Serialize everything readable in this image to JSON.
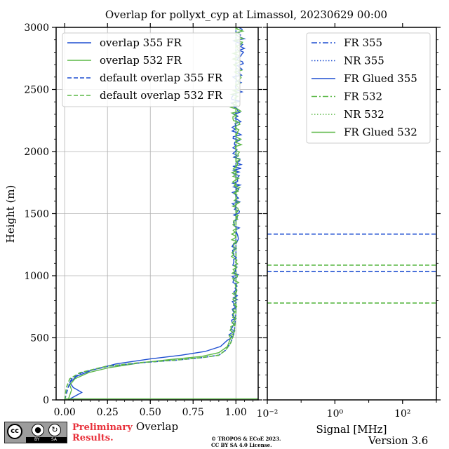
{
  "title": "Overlap for pollyxt_cyp at Limassol, 20230629 00:00",
  "chart_data": [
    {
      "type": "line",
      "xlabel": "Overlap",
      "ylabel": "Height (m)",
      "xlim": [
        -0.05,
        1.13
      ],
      "ylim": [
        0,
        3000
      ],
      "x_ticks": [
        "0.00",
        "0.25",
        "0.50",
        "0.75",
        "1.00"
      ],
      "x_tick_values": [
        0,
        0.25,
        0.5,
        0.75,
        1.0
      ],
      "y_ticks": [
        "0",
        "500",
        "1000",
        "1500",
        "2000",
        "2500",
        "3000"
      ],
      "y_tick_values": [
        0,
        500,
        1000,
        1500,
        2000,
        2500,
        3000
      ],
      "grid": true,
      "legend": "top",
      "series": [
        {
          "name": "overlap 355 FR",
          "color": "#1f4fd1",
          "style": "solid",
          "points": [
            [
              0.02,
              0
            ],
            [
              0.1,
              60
            ],
            [
              0.05,
              100
            ],
            [
              0.03,
              140
            ],
            [
              0.07,
              190
            ],
            [
              0.16,
              240
            ],
            [
              0.3,
              290
            ],
            [
              0.5,
              330
            ],
            [
              0.68,
              360
            ],
            [
              0.82,
              390
            ],
            [
              0.91,
              430
            ],
            [
              0.95,
              480
            ],
            [
              0.98,
              540
            ],
            [
              0.99,
              700
            ],
            [
              1.0,
              900
            ],
            [
              0.99,
              1100
            ],
            [
              1.0,
              1400
            ],
            [
              1.0,
              1700
            ],
            [
              1.01,
              2000
            ],
            [
              1.0,
              2300
            ],
            [
              1.01,
              2600
            ],
            [
              1.02,
              2800
            ],
            [
              1.02,
              3000
            ]
          ]
        },
        {
          "name": "overlap 532 FR",
          "color": "#5cb847",
          "style": "solid",
          "points": [
            [
              0.02,
              0
            ],
            [
              0.04,
              80
            ],
            [
              0.03,
              120
            ],
            [
              0.06,
              170
            ],
            [
              0.14,
              220
            ],
            [
              0.26,
              260
            ],
            [
              0.45,
              300
            ],
            [
              0.65,
              330
            ],
            [
              0.8,
              350
            ],
            [
              0.9,
              380
            ],
            [
              0.95,
              430
            ],
            [
              0.97,
              500
            ],
            [
              0.99,
              650
            ],
            [
              1.0,
              900
            ],
            [
              0.99,
              1200
            ],
            [
              1.0,
              1500
            ],
            [
              1.0,
              1800
            ],
            [
              1.01,
              2100
            ],
            [
              1.0,
              2400
            ],
            [
              1.01,
              2700
            ],
            [
              1.02,
              3000
            ]
          ]
        },
        {
          "name": "default overlap 355 FR",
          "color": "#1f4fd1",
          "style": "dashed",
          "points": [
            [
              0.0,
              0
            ],
            [
              0.02,
              100
            ],
            [
              0.04,
              170
            ],
            [
              0.1,
              220
            ],
            [
              0.25,
              270
            ],
            [
              0.45,
              300
            ],
            [
              0.65,
              320
            ],
            [
              0.8,
              340
            ],
            [
              0.9,
              360
            ],
            [
              0.94,
              400
            ],
            [
              0.97,
              460
            ],
            [
              0.99,
              540
            ],
            [
              1.0,
              700
            ],
            [
              1.0,
              3000
            ]
          ]
        },
        {
          "name": "default overlap 532 FR",
          "color": "#5cb847",
          "style": "dashed",
          "points": [
            [
              0.0,
              0
            ],
            [
              0.01,
              100
            ],
            [
              0.03,
              170
            ],
            [
              0.09,
              220
            ],
            [
              0.24,
              270
            ],
            [
              0.44,
              300
            ],
            [
              0.64,
              320
            ],
            [
              0.8,
              340
            ],
            [
              0.9,
              360
            ],
            [
              0.94,
              400
            ],
            [
              0.97,
              460
            ],
            [
              0.99,
              540
            ],
            [
              1.0,
              700
            ],
            [
              1.0,
              3000
            ]
          ]
        }
      ]
    },
    {
      "type": "line",
      "xlabel": "Signal [MHz]",
      "xscale": "log",
      "xlim": [
        0.01,
        1000
      ],
      "ylim": [
        0,
        3000
      ],
      "x_ticks": [
        "10⁻²",
        "10⁰",
        "10²"
      ],
      "x_tick_values": [
        0.01,
        1,
        100
      ],
      "grid": false,
      "legend": "top-right",
      "series": [
        {
          "name": "FR 355",
          "color": "#1f4fd1",
          "style": "dashdot"
        },
        {
          "name": "NR 355",
          "color": "#1f4fd1",
          "style": "dotted"
        },
        {
          "name": "FR Glued 355",
          "color": "#1f4fd1",
          "style": "solid"
        },
        {
          "name": "FR 532",
          "color": "#5cb847",
          "style": "dashdot"
        },
        {
          "name": "NR 532",
          "color": "#5cb847",
          "style": "dotted"
        },
        {
          "name": "FR Glued 532",
          "color": "#5cb847",
          "style": "solid"
        }
      ],
      "hlines": [
        {
          "y": 1335,
          "color": "#1f4fd1",
          "style": "dashed"
        },
        {
          "y": 1035,
          "color": "#1f4fd1",
          "style": "dashed"
        },
        {
          "y": 1085,
          "color": "#5cb847",
          "style": "dashed"
        },
        {
          "y": 780,
          "color": "#5cb847",
          "style": "dashed"
        }
      ]
    }
  ],
  "footer": {
    "license_cc": "cc",
    "license_by": "BY",
    "license_sa": "SA",
    "preliminary_line1": "Preliminary",
    "preliminary_line2": "Results.",
    "copyright_line1": "© TROPOS & ECoE 2023.",
    "copyright_line2": "CC BY SA 4.0 License.",
    "version": "Version 3.6"
  }
}
